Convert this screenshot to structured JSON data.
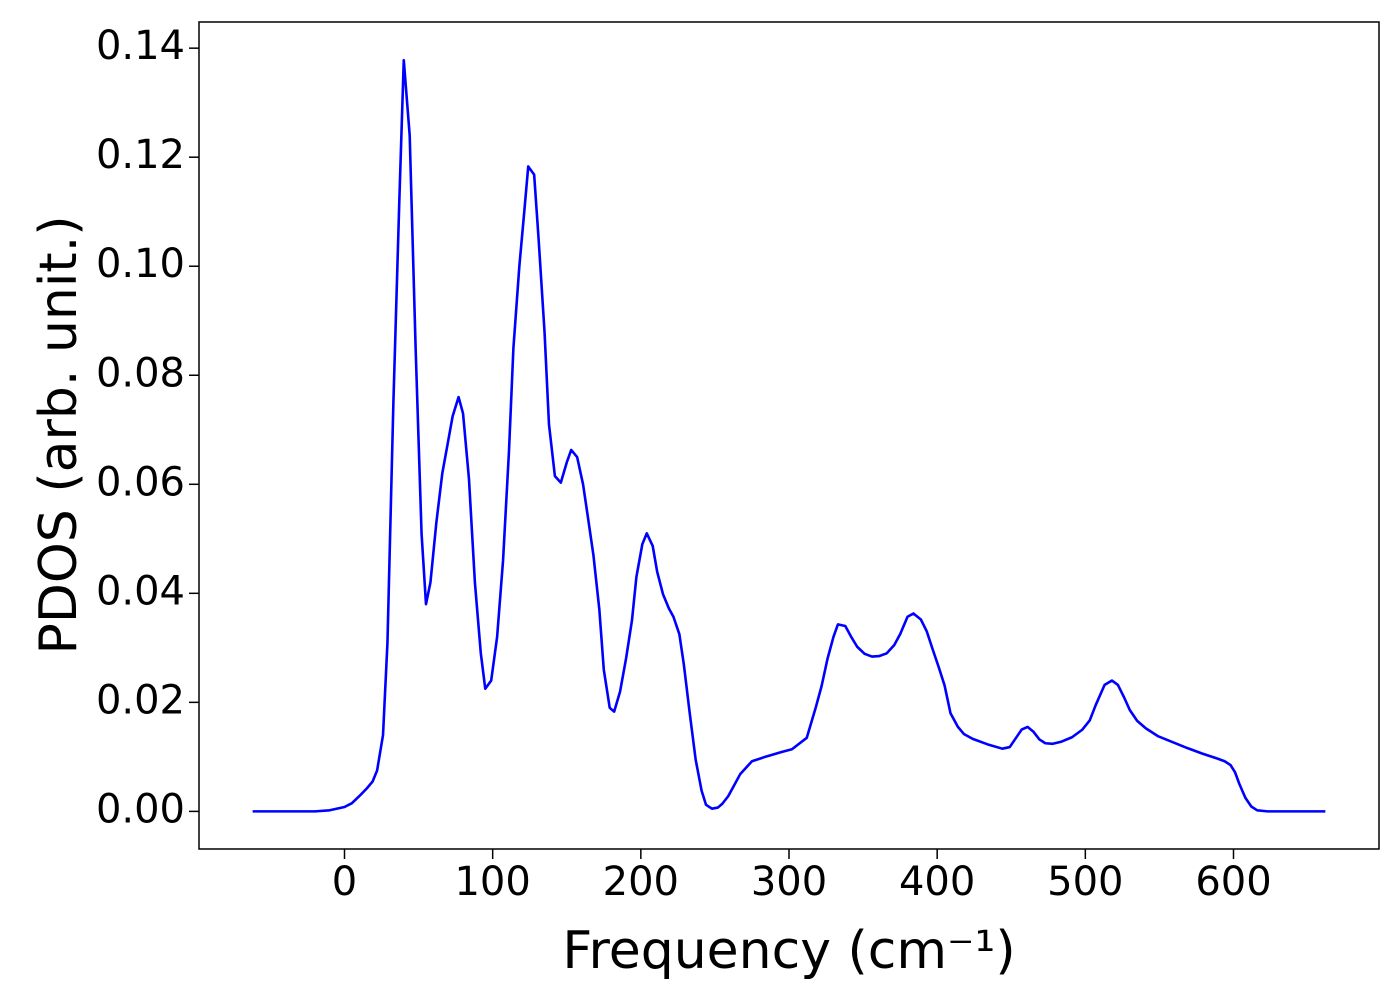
{
  "chart_data": {
    "type": "line",
    "xlabel": "Frequency (cm⁻¹)",
    "ylabel": "PDOS (arb. unit.)",
    "color": "#0000ff",
    "xlim": [
      -98.2,
      698.2
    ],
    "ylim": [
      -0.0069,
      0.1448
    ],
    "xticks": [
      0,
      100,
      200,
      300,
      400,
      500,
      600
    ],
    "yticks": [
      {
        "value": 0,
        "label": "0.00"
      },
      0.02,
      0.04,
      0.06,
      0.08,
      {
        "value": 0.1,
        "label": "0.10"
      },
      0.12,
      0.14
    ],
    "x": [
      -62,
      -20,
      -10,
      0,
      5,
      10,
      15,
      19,
      22,
      26,
      29,
      33,
      37,
      40,
      44,
      48,
      52,
      55,
      58,
      62,
      66,
      70,
      73,
      77,
      80,
      84,
      88,
      92,
      95,
      99,
      103,
      107,
      111,
      114,
      118,
      121,
      124,
      128,
      131,
      135,
      138,
      142,
      146,
      150,
      153,
      157,
      161,
      164,
      168,
      172,
      175,
      179,
      182,
      186,
      190,
      194,
      197,
      201,
      204,
      208,
      211,
      215,
      219,
      222,
      226,
      229,
      233,
      237,
      241,
      244,
      248,
      252,
      255,
      259,
      263,
      267,
      275,
      285,
      295,
      302,
      312,
      318,
      322,
      326,
      330,
      333,
      338,
      342,
      346,
      351,
      356,
      361,
      366,
      371,
      375,
      380,
      384,
      389,
      393,
      397,
      401,
      405,
      409,
      414,
      418,
      424,
      434,
      444,
      449,
      453,
      457,
      461,
      465,
      469,
      473,
      478,
      484,
      491,
      498,
      503,
      507,
      513,
      518,
      522,
      526,
      530,
      535,
      541,
      549,
      559,
      569,
      579,
      589,
      594,
      598,
      601,
      604,
      608,
      612,
      616,
      623,
      662
    ],
    "values": [
      0,
      0,
      0.0002,
      0.0008,
      0.0015,
      0.0028,
      0.0042,
      0.0055,
      0.0075,
      0.014,
      0.031,
      0.075,
      0.112,
      0.1378,
      0.124,
      0.085,
      0.051,
      0.038,
      0.042,
      0.053,
      0.062,
      0.068,
      0.0725,
      0.076,
      0.073,
      0.061,
      0.042,
      0.029,
      0.0225,
      0.024,
      0.032,
      0.046,
      0.066,
      0.085,
      0.1,
      0.109,
      0.1183,
      0.1168,
      0.105,
      0.088,
      0.071,
      0.0615,
      0.0603,
      0.064,
      0.0663,
      0.065,
      0.06,
      0.0545,
      0.047,
      0.037,
      0.026,
      0.019,
      0.0183,
      0.022,
      0.028,
      0.035,
      0.043,
      0.049,
      0.051,
      0.0487,
      0.044,
      0.0398,
      0.0372,
      0.0357,
      0.0325,
      0.027,
      0.018,
      0.0095,
      0.0038,
      0.0012,
      0.0005,
      0.0007,
      0.0014,
      0.0028,
      0.0048,
      0.0068,
      0.0092,
      0.0101,
      0.0109,
      0.0114,
      0.0135,
      0.019,
      0.023,
      0.028,
      0.032,
      0.0343,
      0.034,
      0.032,
      0.0302,
      0.0289,
      0.0284,
      0.0285,
      0.029,
      0.0305,
      0.0325,
      0.0357,
      0.0363,
      0.0352,
      0.033,
      0.0297,
      0.0265,
      0.0231,
      0.018,
      0.0155,
      0.0142,
      0.0133,
      0.0123,
      0.0115,
      0.0118,
      0.0134,
      0.015,
      0.0155,
      0.0146,
      0.0132,
      0.0125,
      0.0124,
      0.0128,
      0.0136,
      0.015,
      0.0167,
      0.0195,
      0.0232,
      0.024,
      0.0232,
      0.021,
      0.0186,
      0.0166,
      0.0152,
      0.0138,
      0.0127,
      0.0116,
      0.0106,
      0.0097,
      0.0092,
      0.0085,
      0.0072,
      0.005,
      0.0025,
      0.0009,
      0.0002,
      0,
      0
    ]
  }
}
